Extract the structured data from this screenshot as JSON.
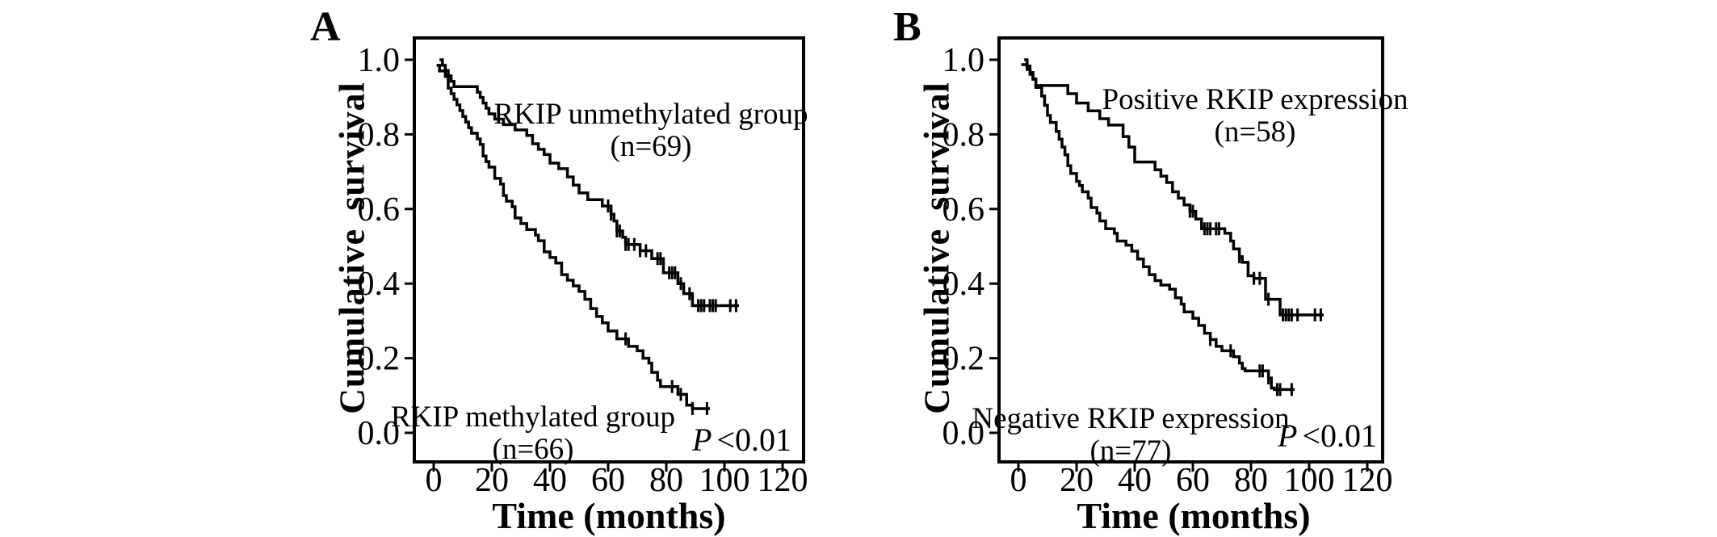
{
  "figure": {
    "description": "Two-panel Kaplan-Meier cumulative survival figure",
    "background": "#ffffff",
    "line_color": "#000000"
  },
  "chart_data": [
    {
      "type": "line",
      "subtype": "kaplan-meier-step",
      "panel_label": "A",
      "xlabel": "Time (months)",
      "ylabel": "Cumulative survival",
      "xlim": [
        0,
        120
      ],
      "ylim": [
        0.0,
        1.0
      ],
      "xticks": [
        0,
        20,
        40,
        60,
        80,
        100,
        120
      ],
      "yticks": [
        "1.0",
        "0.8",
        "0.6",
        "0.4",
        "0.2",
        "0.0"
      ],
      "grid": false,
      "legend_position": "in-plot text annotations",
      "p_value": {
        "italic": "P",
        "text": "<0.01"
      },
      "series": [
        {
          "name": "RKIP unmethylated group",
          "n_label": "(n=69)",
          "points": [
            [
              2,
              1.0
            ],
            [
              3,
              0.985
            ],
            [
              4,
              0.971
            ],
            [
              5,
              0.957
            ],
            [
              6,
              0.942
            ],
            [
              7,
              0.928
            ],
            [
              15,
              0.913
            ],
            [
              16,
              0.899
            ],
            [
              17,
              0.884
            ],
            [
              18,
              0.87
            ],
            [
              19,
              0.855
            ],
            [
              21,
              0.841
            ],
            [
              24,
              0.826
            ],
            [
              28,
              0.812
            ],
            [
              32,
              0.797
            ],
            [
              34,
              0.775
            ],
            [
              36,
              0.76
            ],
            [
              38,
              0.746
            ],
            [
              40,
              0.723
            ],
            [
              43,
              0.708
            ],
            [
              46,
              0.686
            ],
            [
              48,
              0.664
            ],
            [
              50,
              0.643
            ],
            [
              53,
              0.625
            ],
            [
              58,
              0.608
            ],
            [
              61,
              0.586
            ],
            [
              62,
              0.568
            ],
            [
              63,
              0.541
            ],
            [
              65,
              0.524
            ],
            [
              66,
              0.505
            ],
            [
              71,
              0.488
            ],
            [
              75,
              0.467
            ],
            [
              79,
              0.429
            ],
            [
              84,
              0.4
            ],
            [
              86,
              0.373
            ],
            [
              89,
              0.341
            ]
          ],
          "end_time": 105,
          "censor_times": [
            60,
            61,
            63,
            64,
            66,
            67,
            69,
            71,
            73,
            77,
            78,
            81,
            82,
            83,
            85,
            88,
            91,
            92,
            93,
            95,
            96,
            97,
            102,
            104
          ]
        },
        {
          "name": "RKIP methylated group",
          "n_label": "(n=66)",
          "points": [
            [
              1,
              0.985
            ],
            [
              2,
              0.97
            ],
            [
              4,
              0.955
            ],
            [
              5,
              0.924
            ],
            [
              6,
              0.909
            ],
            [
              7,
              0.894
            ],
            [
              8,
              0.879
            ],
            [
              9,
              0.864
            ],
            [
              10,
              0.848
            ],
            [
              11,
              0.833
            ],
            [
              12,
              0.818
            ],
            [
              13,
              0.803
            ],
            [
              15,
              0.788
            ],
            [
              16,
              0.773
            ],
            [
              17,
              0.742
            ],
            [
              18,
              0.727
            ],
            [
              19,
              0.712
            ],
            [
              21,
              0.682
            ],
            [
              23,
              0.667
            ],
            [
              24,
              0.636
            ],
            [
              25,
              0.621
            ],
            [
              27,
              0.606
            ],
            [
              28,
              0.576
            ],
            [
              30,
              0.561
            ],
            [
              32,
              0.545
            ],
            [
              35,
              0.53
            ],
            [
              36,
              0.515
            ],
            [
              38,
              0.485
            ],
            [
              40,
              0.47
            ],
            [
              42,
              0.455
            ],
            [
              44,
              0.424
            ],
            [
              46,
              0.409
            ],
            [
              48,
              0.394
            ],
            [
              50,
              0.379
            ],
            [
              52,
              0.358
            ],
            [
              54,
              0.333
            ],
            [
              56,
              0.312
            ],
            [
              58,
              0.295
            ],
            [
              60,
              0.273
            ],
            [
              63,
              0.252
            ],
            [
              67,
              0.232
            ],
            [
              70,
              0.22
            ],
            [
              72,
              0.2
            ],
            [
              74,
              0.187
            ],
            [
              75,
              0.162
            ],
            [
              77,
              0.141
            ],
            [
              78,
              0.124
            ],
            [
              84,
              0.103
            ],
            [
              87,
              0.074
            ],
            [
              89,
              0.065
            ]
          ],
          "end_time": 95,
          "censor_times": [
            66,
            82,
            85,
            89,
            94
          ]
        }
      ]
    },
    {
      "type": "line",
      "subtype": "kaplan-meier-step",
      "panel_label": "B",
      "xlabel": "Time (months)",
      "ylabel": "Cumulative survival",
      "xlim": [
        0,
        120
      ],
      "ylim": [
        0.0,
        1.0
      ],
      "xticks": [
        0,
        20,
        40,
        60,
        80,
        100,
        120
      ],
      "yticks": [
        "1.0",
        "0.8",
        "0.6",
        "0.4",
        "0.2",
        "0.0"
      ],
      "grid": false,
      "legend_position": "in-plot text annotations",
      "p_value": {
        "italic": "P",
        "text": "<0.01"
      },
      "series": [
        {
          "name": "Positive RKIP expression",
          "n_label": "(n=58)",
          "points": [
            [
              2,
              1.0
            ],
            [
              3,
              0.983
            ],
            [
              4,
              0.966
            ],
            [
              5,
              0.948
            ],
            [
              6,
              0.931
            ],
            [
              17,
              0.909
            ],
            [
              20,
              0.884
            ],
            [
              24,
              0.863
            ],
            [
              28,
              0.842
            ],
            [
              31,
              0.825
            ],
            [
              36,
              0.794
            ],
            [
              38,
              0.766
            ],
            [
              40,
              0.726
            ],
            [
              47,
              0.705
            ],
            [
              49,
              0.688
            ],
            [
              51,
              0.671
            ],
            [
              53,
              0.646
            ],
            [
              55,
              0.629
            ],
            [
              57,
              0.611
            ],
            [
              59,
              0.594
            ],
            [
              61,
              0.573
            ],
            [
              63,
              0.547
            ],
            [
              71,
              0.535
            ],
            [
              73,
              0.514
            ],
            [
              74,
              0.493
            ],
            [
              76,
              0.472
            ],
            [
              77,
              0.457
            ],
            [
              79,
              0.421
            ],
            [
              81,
              0.414
            ],
            [
              85,
              0.358
            ],
            [
              90,
              0.316
            ]
          ],
          "end_time": 105,
          "censor_times": [
            59,
            60,
            64,
            65,
            66,
            68,
            69,
            76,
            81,
            83,
            86,
            91,
            92,
            93,
            94,
            96,
            102,
            104
          ]
        },
        {
          "name": "Negative RKIP expression",
          "n_label": "(n=77)",
          "points": [
            [
              1,
              0.987
            ],
            [
              3,
              0.974
            ],
            [
              4,
              0.961
            ],
            [
              5,
              0.948
            ],
            [
              6,
              0.926
            ],
            [
              8,
              0.903
            ],
            [
              9,
              0.878
            ],
            [
              10,
              0.851
            ],
            [
              11,
              0.832
            ],
            [
              13,
              0.808
            ],
            [
              14,
              0.787
            ],
            [
              15,
              0.766
            ],
            [
              16,
              0.745
            ],
            [
              17,
              0.716
            ],
            [
              18,
              0.695
            ],
            [
              20,
              0.674
            ],
            [
              21,
              0.663
            ],
            [
              22,
              0.646
            ],
            [
              24,
              0.629
            ],
            [
              25,
              0.604
            ],
            [
              27,
              0.589
            ],
            [
              28,
              0.568
            ],
            [
              30,
              0.547
            ],
            [
              33,
              0.535
            ],
            [
              34,
              0.514
            ],
            [
              37,
              0.503
            ],
            [
              39,
              0.487
            ],
            [
              41,
              0.466
            ],
            [
              43,
              0.445
            ],
            [
              45,
              0.424
            ],
            [
              47,
              0.408
            ],
            [
              49,
              0.396
            ],
            [
              52,
              0.385
            ],
            [
              54,
              0.362
            ],
            [
              56,
              0.345
            ],
            [
              57,
              0.324
            ],
            [
              60,
              0.307
            ],
            [
              62,
              0.288
            ],
            [
              64,
              0.267
            ],
            [
              66,
              0.25
            ],
            [
              68,
              0.232
            ],
            [
              70,
              0.22
            ],
            [
              74,
              0.204
            ],
            [
              76,
              0.187
            ],
            [
              77,
              0.172
            ],
            [
              78,
              0.166
            ],
            [
              86,
              0.147
            ],
            [
              87,
              0.12
            ],
            [
              88,
              0.116
            ]
          ],
          "end_time": 95,
          "censor_times": [
            66,
            73,
            83,
            84,
            86,
            89,
            90,
            94
          ]
        }
      ]
    }
  ]
}
